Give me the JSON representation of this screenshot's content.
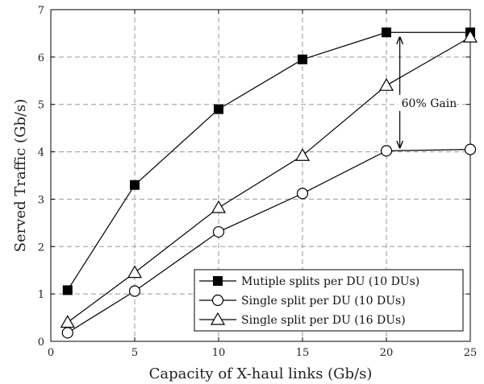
{
  "chart_data": {
    "type": "line",
    "xlabel": "Capacity of X-haul links (Gb/s)",
    "ylabel": "Served Traffic (Gb/s)",
    "xlim": [
      0,
      25
    ],
    "ylim": [
      0,
      7
    ],
    "xticks": [
      0,
      5,
      10,
      15,
      20,
      25
    ],
    "yticks": [
      0,
      1,
      2,
      3,
      4,
      5,
      6,
      7
    ],
    "grid": true,
    "legend_position": "bottom-right",
    "x": [
      1,
      5,
      10,
      15,
      20,
      25
    ],
    "series": [
      {
        "name": "Mutiple splits per DU (10 DUs)",
        "marker": "square-filled",
        "values": [
          1.08,
          3.3,
          4.9,
          5.95,
          6.52,
          6.52
        ]
      },
      {
        "name": "Single split per DU (10 DUs)",
        "marker": "circle-open",
        "values": [
          0.18,
          1.06,
          2.31,
          3.12,
          4.02,
          4.05
        ]
      },
      {
        "name": "Single split per DU (16 DUs)",
        "marker": "triangle-open",
        "values": [
          0.4,
          1.45,
          2.82,
          3.92,
          5.4,
          6.42
        ]
      }
    ],
    "annotations": [
      {
        "text": "60% Gain",
        "x": 20.8,
        "y_from": 4.02,
        "y_to": 6.52
      }
    ]
  }
}
